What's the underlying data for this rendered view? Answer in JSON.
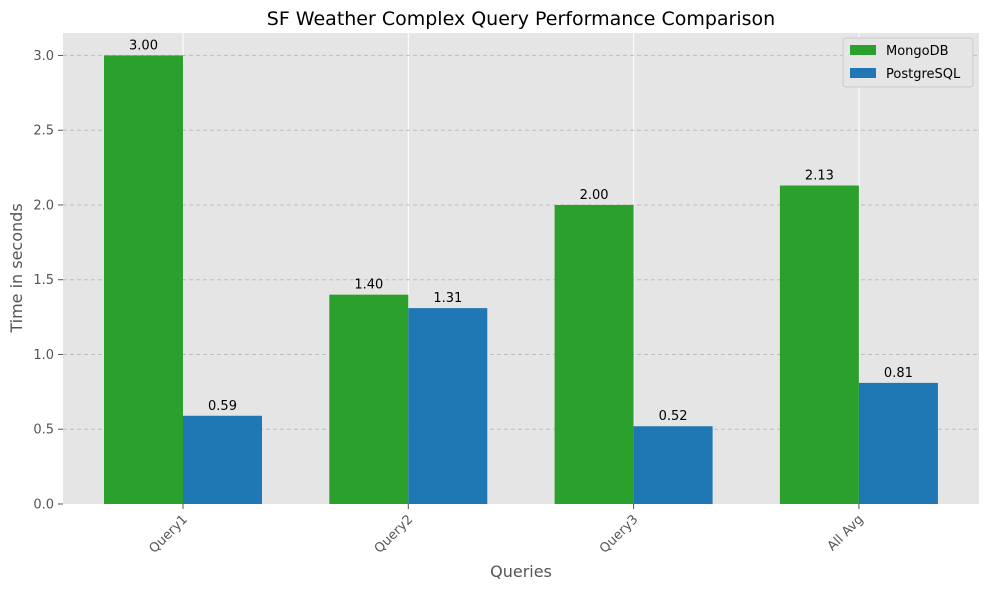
{
  "chart_data": {
    "type": "bar",
    "title": "SF Weather Complex Query Performance Comparison",
    "xlabel": "Queries",
    "ylabel": "Time in seconds",
    "categories": [
      "Query1",
      "Query2",
      "Query3",
      "All Avg"
    ],
    "series": [
      {
        "name": "MongoDB",
        "values": [
          3.0,
          1.4,
          2.0,
          2.13
        ],
        "color": "#2ca02c"
      },
      {
        "name": "PostgreSQL",
        "values": [
          0.59,
          1.31,
          0.52,
          0.81
        ],
        "color": "#1f77b4"
      }
    ],
    "data_labels": [
      [
        "3.00",
        "1.40",
        "2.00",
        "2.13"
      ],
      [
        "0.59",
        "1.31",
        "0.52",
        "0.81"
      ]
    ],
    "ylim": [
      0,
      3.15
    ],
    "yticks": [
      "0.0",
      "0.5",
      "1.0",
      "1.5",
      "2.0",
      "2.5",
      "3.0"
    ],
    "grid": true,
    "legend_position": "top-right",
    "background_color": "#e5e5e5",
    "tick_label_rotation_deg": 45
  }
}
